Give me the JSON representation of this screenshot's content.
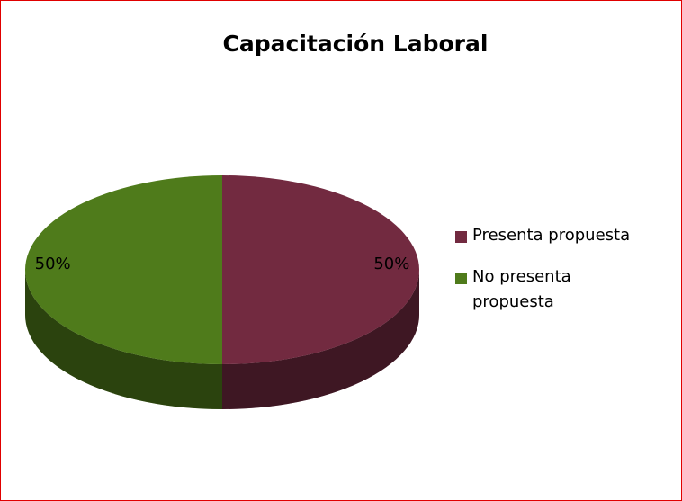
{
  "chart_data": {
    "type": "pie",
    "title": "Capacitación Laboral",
    "categories": [
      "Presenta propuesta",
      "No presenta propuesta"
    ],
    "values": [
      50,
      50
    ],
    "value_labels": [
      "50%",
      "50%"
    ],
    "colors": [
      "#722a40",
      "#4f7b1b"
    ],
    "legend": "right"
  }
}
